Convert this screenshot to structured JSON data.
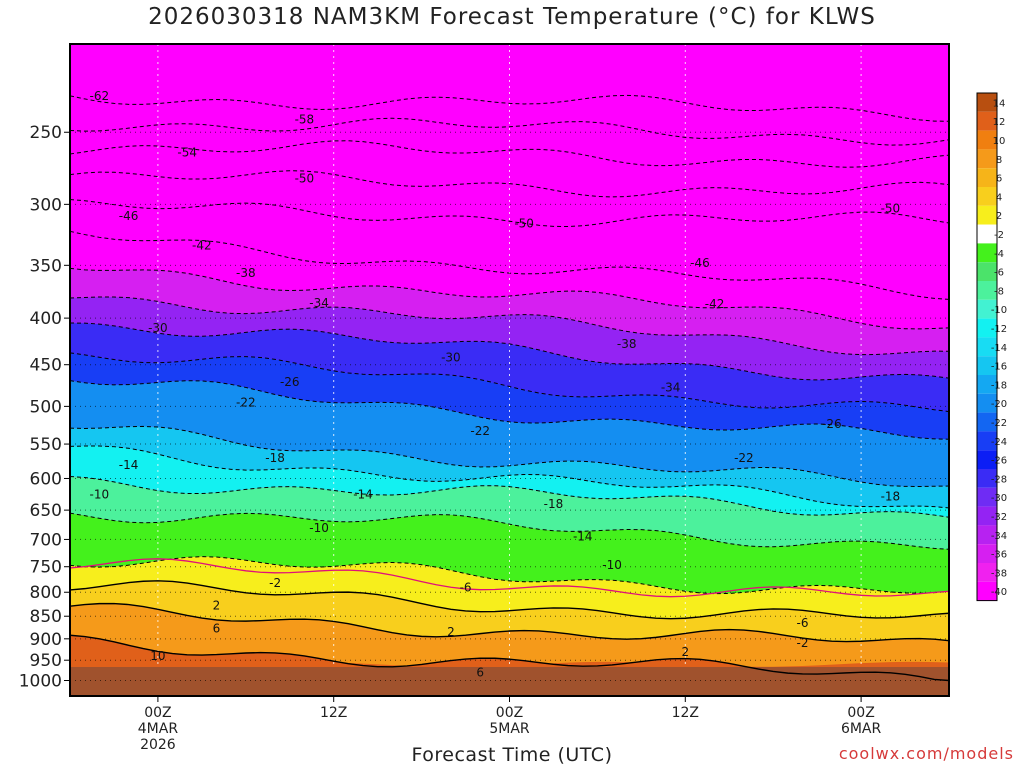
{
  "chart_data": {
    "type": "heatmap",
    "title": "2026030318 NAM3KM Forecast Temperature (°C) for KLWS",
    "xlabel": "Forecast Time (UTC)",
    "ylabel": "",
    "y_ticks": [
      "250",
      "300",
      "350",
      "400",
      "450",
      "500",
      "550",
      "600",
      "650",
      "700",
      "750",
      "800",
      "850",
      "900",
      "950",
      "1000"
    ],
    "y_tick_values": [
      250,
      300,
      350,
      400,
      450,
      500,
      550,
      600,
      650,
      700,
      750,
      800,
      850,
      900,
      950,
      1000
    ],
    "y_axis_scale": "log-pressure, inverted (surface at bottom)",
    "x_ticks": [
      {
        "hour": 6,
        "label": [
          "00Z",
          "4MAR",
          "2026"
        ]
      },
      {
        "hour": 18,
        "label": [
          "12Z"
        ]
      },
      {
        "hour": 30,
        "label": [
          "00Z",
          "5MAR"
        ]
      },
      {
        "hour": 42,
        "label": [
          "12Z"
        ]
      },
      {
        "hour": 54,
        "label": [
          "00Z",
          "6MAR"
        ]
      }
    ],
    "xlim_hours": [
      0,
      60
    ],
    "ylim_hpa": [
      200,
      1040
    ],
    "grid": true,
    "colorbar": {
      "placement": "right",
      "labels": [
        "14",
        "12",
        "10",
        "8",
        "6",
        "4",
        "2",
        "-2",
        "-4",
        "-6",
        "-8",
        "-10",
        "-12",
        "-14",
        "-16",
        "-18",
        "-20",
        "-22",
        "-24",
        "-26",
        "-28",
        "-30",
        "-32",
        "-34",
        "-36",
        "-38",
        "-40"
      ],
      "colors": [
        "#b84f10",
        "#e0601a",
        "#f07f10",
        "#f59a1a",
        "#f6b419",
        "#f8cf1d",
        "#f7ee1c",
        "#ffffff",
        "#44f11c",
        "#4be36a",
        "#4cf19c",
        "#42f2d2",
        "#13f1f1",
        "#18dcf3",
        "#15c6f1",
        "#14a8f2",
        "#148ef1",
        "#1366f2",
        "#183ef5",
        "#0c1ef5",
        "#3a2cf5",
        "#6f2cf4",
        "#9423f3",
        "#b722f1",
        "#d61ff1",
        "#f021ef",
        "#ff00ff"
      ]
    },
    "isotherms": [
      {
        "value": -62,
        "level_hpa": 228
      },
      {
        "value": -58,
        "level_hpa": 243
      },
      {
        "value": -54,
        "level_hpa": 259
      },
      {
        "value": -50,
        "level_hpa": 280
      },
      {
        "value": -46,
        "level_hpa": 303
      },
      {
        "value": -42,
        "level_hpa": 325
      },
      {
        "value": -38,
        "level_hpa": 350
      },
      {
        "value": -34,
        "level_hpa": 375
      },
      {
        "value": -30,
        "level_hpa": 403
      },
      {
        "value": -26,
        "level_hpa": 438
      },
      {
        "value": -22,
        "level_hpa": 470
      },
      {
        "value": -18,
        "level_hpa": 530
      },
      {
        "value": -14,
        "level_hpa": 557
      },
      {
        "value": -10,
        "level_hpa": 600
      },
      {
        "value": -6,
        "level_hpa": 650
      },
      {
        "value": -2,
        "level_hpa": 735
      },
      {
        "value": 2,
        "level_hpa": 790
      },
      {
        "value": 6,
        "level_hpa": 842
      },
      {
        "value": 10,
        "level_hpa": 913
      }
    ],
    "contour_labels": [
      {
        "text": "-62",
        "hour": 2,
        "hpa": 228
      },
      {
        "text": "-58",
        "hour": 16,
        "hpa": 242
      },
      {
        "text": "-54",
        "hour": 8,
        "hpa": 263
      },
      {
        "text": "-50",
        "hour": 16,
        "hpa": 281
      },
      {
        "text": "-50",
        "hour": 31,
        "hpa": 315
      },
      {
        "text": "-50",
        "hour": 56,
        "hpa": 303
      },
      {
        "text": "-46",
        "hour": 4,
        "hpa": 309
      },
      {
        "text": "-46",
        "hour": 43,
        "hpa": 348
      },
      {
        "text": "-42",
        "hour": 9,
        "hpa": 333
      },
      {
        "text": "-42",
        "hour": 44,
        "hpa": 386
      },
      {
        "text": "-38",
        "hour": 12,
        "hpa": 357
      },
      {
        "text": "-38",
        "hour": 38,
        "hpa": 427
      },
      {
        "text": "-34",
        "hour": 17,
        "hpa": 385
      },
      {
        "text": "-34",
        "hour": 41,
        "hpa": 477
      },
      {
        "text": "-30",
        "hour": 6,
        "hpa": 410
      },
      {
        "text": "-30",
        "hour": 26,
        "hpa": 442
      },
      {
        "text": "-26",
        "hour": 15,
        "hpa": 470
      },
      {
        "text": "-26",
        "hour": 52,
        "hpa": 523
      },
      {
        "text": "-22",
        "hour": 12,
        "hpa": 495
      },
      {
        "text": "-22",
        "hour": 28,
        "hpa": 532
      },
      {
        "text": "-22",
        "hour": 46,
        "hpa": 570
      },
      {
        "text": "-18",
        "hour": 14,
        "hpa": 570
      },
      {
        "text": "-18",
        "hour": 33,
        "hpa": 640
      },
      {
        "text": "-18",
        "hour": 56,
        "hpa": 628
      },
      {
        "text": "-14",
        "hour": 4,
        "hpa": 580
      },
      {
        "text": "-14",
        "hour": 20,
        "hpa": 625
      },
      {
        "text": "-14",
        "hour": 35,
        "hpa": 695
      },
      {
        "text": "-10",
        "hour": 2,
        "hpa": 625
      },
      {
        "text": "-10",
        "hour": 17,
        "hpa": 680
      },
      {
        "text": "-10",
        "hour": 37,
        "hpa": 747
      },
      {
        "text": "-6",
        "hour": 27,
        "hpa": 790
      },
      {
        "text": "-6",
        "hour": 50,
        "hpa": 865
      },
      {
        "text": "-2",
        "hour": 14,
        "hpa": 782
      },
      {
        "text": "-2",
        "hour": 50,
        "hpa": 910
      },
      {
        "text": "2",
        "hour": 10,
        "hpa": 827
      },
      {
        "text": "2",
        "hour": 26,
        "hpa": 885
      },
      {
        "text": "2",
        "hour": 42,
        "hpa": 930
      },
      {
        "text": "6",
        "hour": 10,
        "hpa": 877
      },
      {
        "text": "6",
        "hour": 28,
        "hpa": 980
      },
      {
        "text": "10",
        "hour": 6,
        "hpa": 940
      }
    ]
  },
  "credit": "coolwx.com/models"
}
